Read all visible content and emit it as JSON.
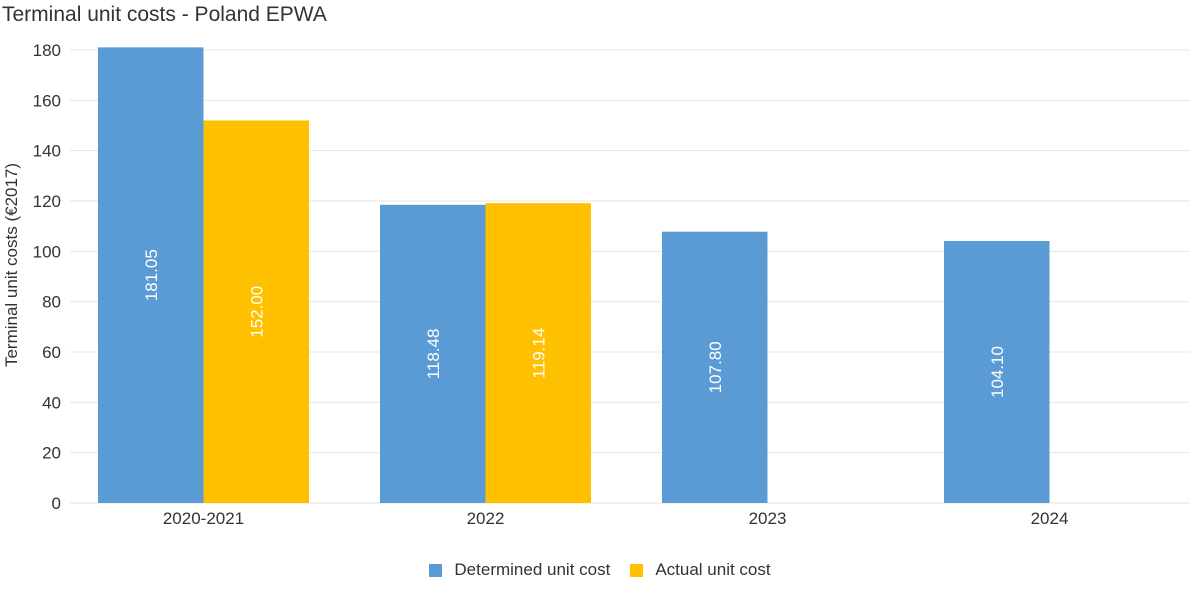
{
  "chart_data": {
    "type": "bar",
    "title": "Terminal unit costs - Poland EPWA",
    "ylabel": "Terminal unit costs (€2017)",
    "xlabel": "",
    "ylim": [
      0,
      180
    ],
    "yticks": [
      0,
      20,
      40,
      60,
      80,
      100,
      120,
      140,
      160,
      180
    ],
    "grid": true,
    "legend_position": "bottom",
    "categories": [
      "2020-2021",
      "2022",
      "2023",
      "2024"
    ],
    "series": [
      {
        "name": "Determined unit cost",
        "color": "#5b9bd5",
        "values": [
          181.05,
          118.48,
          107.8,
          104.1
        ],
        "labels": [
          "181.05",
          "118.48",
          "107.80",
          "104.10"
        ]
      },
      {
        "name": "Actual unit cost",
        "color": "#ffc000",
        "values": [
          152.0,
          119.14,
          null,
          null
        ],
        "labels": [
          "152.00",
          "119.14",
          "",
          ""
        ]
      }
    ]
  }
}
